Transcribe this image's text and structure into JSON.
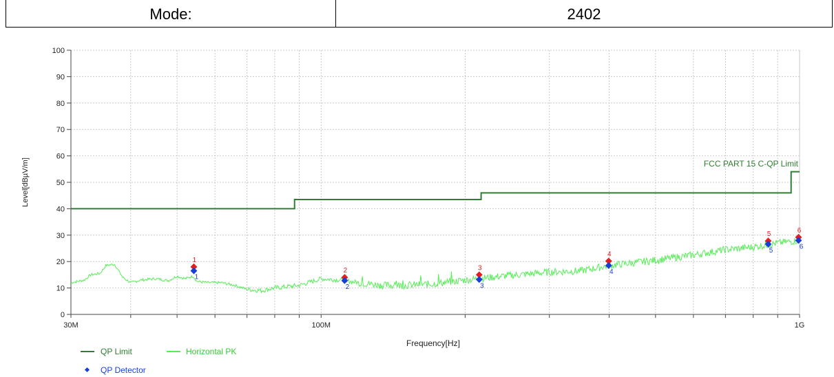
{
  "header": {
    "mode_label": "Mode:",
    "mode_value": "2402"
  },
  "colors": {
    "qp_limit": "#2e7d32",
    "horizontal_pk": "#55ee55",
    "qp_detector": "#1a3fd6",
    "peak_marker": "#e02020",
    "grid": "#c8c8c8"
  },
  "chart_data": {
    "type": "line",
    "xscale": "log",
    "xlim_hz": [
      30000000,
      1000000000
    ],
    "ylim": [
      0,
      100
    ],
    "yticks": [
      0,
      10,
      20,
      30,
      40,
      50,
      60,
      70,
      80,
      90,
      100
    ],
    "xtick_labels": [
      {
        "value": 30000000,
        "label": "30M"
      },
      {
        "value": 100000000,
        "label": "100M"
      },
      {
        "value": 1000000000,
        "label": "1G"
      }
    ],
    "ylabel": "Level[dBµV/m]",
    "xlabel": "Frequency[Hz]",
    "limit_annotation": "FCC PART 15 C-QP Limit",
    "series": [
      {
        "name": "QP Limit",
        "kind": "step",
        "points": [
          [
            30,
            40
          ],
          [
            88,
            40
          ],
          [
            88,
            43.5
          ],
          [
            216,
            43.5
          ],
          [
            216,
            46
          ],
          [
            960,
            46
          ],
          [
            960,
            54
          ],
          [
            1000,
            54
          ]
        ]
      },
      {
        "name": "Horizontal PK",
        "kind": "noisy-trace",
        "points": [
          [
            30,
            12
          ],
          [
            32,
            13
          ],
          [
            33,
            15
          ],
          [
            34.5,
            15.5
          ],
          [
            35.5,
            18.5
          ],
          [
            37,
            19
          ],
          [
            38.5,
            14
          ],
          [
            40,
            12
          ],
          [
            42,
            13
          ],
          [
            45,
            13.5
          ],
          [
            48,
            12.8
          ],
          [
            50,
            14.5
          ],
          [
            52,
            13.5
          ],
          [
            54,
            14.5
          ],
          [
            55,
            12.5
          ],
          [
            58,
            12
          ],
          [
            62,
            12
          ],
          [
            66,
            11
          ],
          [
            70,
            9.5
          ],
          [
            75,
            9
          ],
          [
            80,
            10
          ],
          [
            90,
            11
          ],
          [
            100,
            13.5
          ],
          [
            110,
            13
          ],
          [
            120,
            12
          ],
          [
            135,
            11
          ],
          [
            150,
            11
          ],
          [
            170,
            11.5
          ],
          [
            200,
            13
          ],
          [
            240,
            14.5
          ],
          [
            300,
            16
          ],
          [
            350,
            16.5
          ],
          [
            400,
            18.5
          ],
          [
            500,
            20.5
          ],
          [
            600,
            22.5
          ],
          [
            700,
            24.5
          ],
          [
            800,
            25.5
          ],
          [
            900,
            27
          ],
          [
            1000,
            28
          ]
        ]
      }
    ],
    "markers": [
      {
        "id": "1",
        "freq_mhz": 54.2,
        "peak": 18.0,
        "qp": 16.5
      },
      {
        "id": "2",
        "freq_mhz": 112.0,
        "peak": 14.0,
        "qp": 12.8
      },
      {
        "id": "3",
        "freq_mhz": 214.0,
        "peak": 15.0,
        "qp": 13.2
      },
      {
        "id": "4",
        "freq_mhz": 399.0,
        "peak": 20.2,
        "qp": 18.5
      },
      {
        "id": "5",
        "freq_mhz": 860.0,
        "peak": 27.8,
        "qp": 26.6
      },
      {
        "id": "6",
        "freq_mhz": 995.0,
        "peak": 29.2,
        "qp": 28.0
      }
    ],
    "legend": {
      "placement": "bottom-left",
      "entries": [
        {
          "label": "QP Limit",
          "series": "QP Limit"
        },
        {
          "label": "Horizontal PK",
          "series": "Horizontal PK"
        },
        {
          "label": "QP Detector",
          "series": "QP Detector"
        }
      ]
    },
    "grid": true
  }
}
